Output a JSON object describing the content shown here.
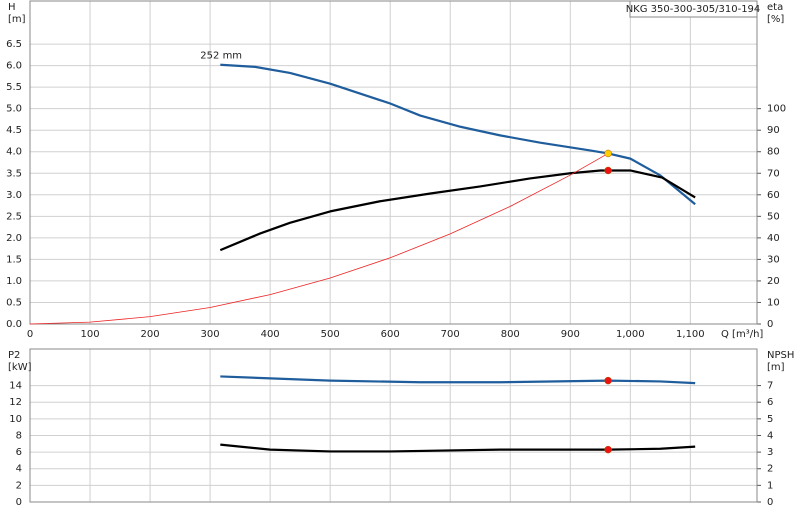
{
  "chart_data": [
    {
      "type": "line",
      "title": "NKG 350-300-305/310-194",
      "x_label": "Q [m³/h]",
      "y_label": "H",
      "y_unit": "[m]",
      "y2_label": "eta",
      "y2_unit": "[%]",
      "xlim": [
        0,
        1211
      ],
      "ylim": [
        0,
        7.5
      ],
      "y2lim": [
        0,
        150
      ],
      "xticks": [
        0,
        100,
        200,
        300,
        400,
        500,
        600,
        700,
        800,
        900,
        {
          "value": 1000,
          "label": "1,000"
        },
        {
          "value": 1100,
          "label": "1,100"
        }
      ],
      "yticks": [
        {
          "value": 0,
          "label": "0.0"
        },
        0.5,
        {
          "value": 1,
          "label": "1.0"
        },
        1.5,
        {
          "value": 2,
          "label": "2.0"
        },
        2.5,
        {
          "value": 3,
          "label": "3.0"
        },
        3.5,
        {
          "value": 4,
          "label": "4.0"
        },
        4.5,
        {
          "value": 5,
          "label": "5.0"
        },
        5.5,
        {
          "value": 6,
          "label": "6.0"
        },
        6.5
      ],
      "y2ticks": [
        0,
        10,
        20,
        30,
        40,
        50,
        60,
        70,
        80,
        90,
        100
      ],
      "grid": true,
      "annotation": "252 mm",
      "series": [
        {
          "color": "#1f5d9c",
          "x": [
            317,
            375,
            433,
            500,
            600,
            650,
            717,
            783,
            850,
            933,
            963,
            1000,
            1050,
            1108
          ],
          "values": [
            6.02,
            5.97,
            5.83,
            5.58,
            5.12,
            4.84,
            4.58,
            4.38,
            4.21,
            4.03,
            3.96,
            3.84,
            3.45,
            2.78
          ]
        },
        {
          "color": "#000000",
          "axis": "y2",
          "x": [
            317,
            383,
            433,
            500,
            583,
            667,
            750,
            833,
            900,
            950,
            1000,
            1053,
            1108
          ],
          "values": [
            34.3,
            42,
            47,
            52.3,
            57,
            60.6,
            63.9,
            67.6,
            70,
            71.3,
            71.3,
            68,
            58.8
          ]
        },
        {
          "color": "#ee2222",
          "thin": true,
          "x": [
            0,
            100,
            200,
            300,
            400,
            500,
            600,
            700,
            800,
            900,
            963
          ],
          "values": [
            0,
            0.043,
            0.171,
            0.384,
            0.683,
            1.067,
            1.537,
            2.092,
            2.732,
            3.458,
            3.96
          ]
        }
      ],
      "points": [
        {
          "x": 963,
          "y": 3.96,
          "color": "#ffcc00"
        },
        {
          "x": 963,
          "y": 71.3,
          "axis": "y2",
          "color": "#ee1111"
        }
      ]
    },
    {
      "type": "line",
      "y_label": "P2",
      "y_unit": "[kW]",
      "y2_label": "NPSH",
      "y2_unit": "[m]",
      "xlim": [
        0,
        1211
      ],
      "ylim": [
        0,
        18.4
      ],
      "y2lim": [
        0,
        9.2
      ],
      "xticks": [
        0,
        100,
        200,
        300,
        400,
        500,
        600,
        700,
        800,
        900,
        1000,
        1100
      ],
      "yticks": [
        0,
        2,
        4,
        6,
        8,
        10,
        12,
        14
      ],
      "y2ticks": [
        0,
        1,
        2,
        3,
        4,
        5,
        6,
        7
      ],
      "grid": true,
      "series": [
        {
          "color": "#1f5d9c",
          "x": [
            317,
            500,
            650,
            783,
            963,
            1050,
            1108
          ],
          "values": [
            15.1,
            14.6,
            14.4,
            14.4,
            14.6,
            14.5,
            14.3
          ]
        },
        {
          "color": "#000000",
          "axis": "y2",
          "x": [
            317,
            400,
            500,
            600,
            783,
            963,
            1050,
            1108
          ],
          "values": [
            3.45,
            3.15,
            3.04,
            3.04,
            3.15,
            3.15,
            3.2,
            3.33
          ]
        }
      ],
      "points": [
        {
          "x": 963,
          "y": 14.6,
          "color": "#ee1111"
        },
        {
          "x": 963,
          "y": 3.15,
          "axis": "y2",
          "color": "#ee1111"
        }
      ]
    }
  ]
}
